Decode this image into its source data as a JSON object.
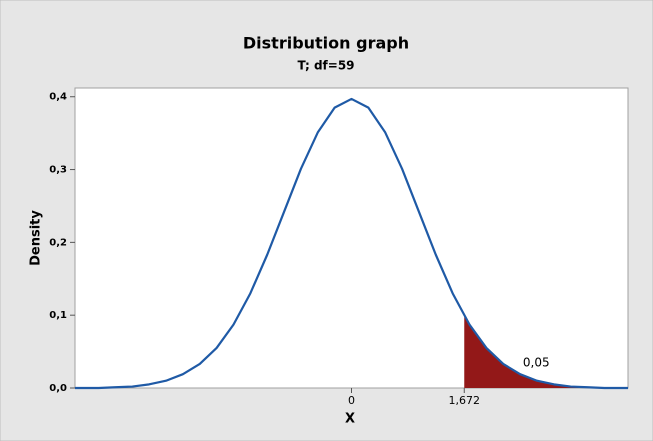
{
  "chart_data": {
    "type": "line",
    "title": "Distribution graph",
    "subtitle": "T; df=59",
    "xlabel": "X",
    "ylabel": "Density",
    "x": [
      -4.1,
      -4,
      -3.75,
      -3.5,
      -3.25,
      -3,
      -2.75,
      -2.5,
      -2.25,
      -2,
      -1.75,
      -1.5,
      -1.25,
      -1,
      -0.75,
      -0.5,
      -0.25,
      0,
      0.25,
      0.5,
      0.75,
      1,
      1.25,
      1.5,
      1.75,
      2,
      2.25,
      2.5,
      2.75,
      3,
      3.25,
      3.5,
      3.75,
      4,
      4.1
    ],
    "series": [
      {
        "name": "T",
        "color": "#1f5aa6",
        "values": [
          0.0,
          0.0,
          0.0,
          0.001,
          0.002,
          0.005,
          0.01,
          0.019,
          0.033,
          0.055,
          0.087,
          0.13,
          0.183,
          0.242,
          0.301,
          0.351,
          0.385,
          0.397,
          0.385,
          0.351,
          0.301,
          0.242,
          0.183,
          0.13,
          0.087,
          0.055,
          0.033,
          0.019,
          0.01,
          0.005,
          0.002,
          0.001,
          0.0,
          0.0,
          0.0
        ]
      }
    ],
    "shaded_region": {
      "from": 1.672,
      "probability": 0.05,
      "probability_label": "0,05",
      "color": "#931818"
    },
    "xlim": [
      -4.1,
      4.1
    ],
    "xticks": [
      0,
      {
        "value": 1.672,
        "label": "1,672"
      }
    ],
    "ylim": [
      0,
      0.412
    ],
    "yticks": [
      {
        "value": 0,
        "label": "0,0"
      },
      {
        "value": 0.1,
        "label": "0,1"
      },
      {
        "value": 0.2,
        "label": "0,2"
      },
      {
        "value": 0.3,
        "label": "0,3"
      },
      {
        "value": 0.4,
        "label": "0,4"
      }
    ]
  }
}
